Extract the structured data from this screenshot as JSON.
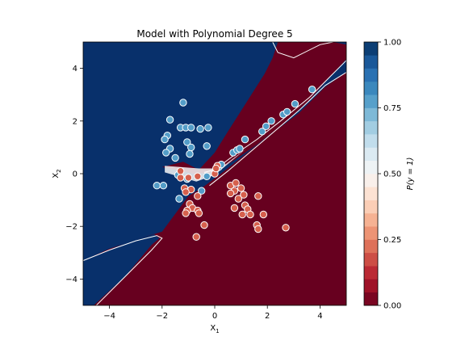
{
  "chart_data": {
    "type": "scatter",
    "title": "Model with Polynomial Degree 5",
    "xlabel_main": "X",
    "xlabel_sub": "1",
    "ylabel_main": "X",
    "ylabel_sub": "2",
    "xlim": [
      -5,
      5
    ],
    "ylim": [
      -5,
      5
    ],
    "xticks": [
      -4,
      -2,
      0,
      2,
      4
    ],
    "xtick_labels": [
      "−4",
      "−2",
      "0",
      "2",
      "4"
    ],
    "yticks": [
      -4,
      -2,
      0,
      2,
      4
    ],
    "ytick_labels": [
      "−4",
      "−2",
      "0",
      "2",
      "4"
    ],
    "background": "decision-surface",
    "colormap": "RdBu",
    "colors": {
      "class1": "#08306b",
      "class0": "#67001f",
      "mid": "#f7f7f7",
      "point_edge": "#ffffff"
    },
    "colorbar": {
      "label": "P(y = 1)",
      "ticks": [
        0.0,
        0.25,
        0.5,
        0.75,
        1.0
      ],
      "tick_labels": [
        "0.00",
        "0.25",
        "0.50",
        "0.75",
        "1.00"
      ],
      "levels": 20
    },
    "series": [
      {
        "class": 1,
        "points": [
          [
            -1.2,
            2.7
          ],
          [
            -1.7,
            2.05
          ],
          [
            -1.3,
            1.75
          ],
          [
            -1.1,
            1.75
          ],
          [
            -0.9,
            1.75
          ],
          [
            -0.55,
            1.7
          ],
          [
            -0.25,
            1.75
          ],
          [
            -1.8,
            1.45
          ],
          [
            -1.9,
            1.3
          ],
          [
            -1.05,
            1.2
          ],
          [
            -1.7,
            0.95
          ],
          [
            -0.9,
            1.0
          ],
          [
            -0.3,
            1.05
          ],
          [
            -1.85,
            0.8
          ],
          [
            -0.95,
            0.75
          ],
          [
            -1.5,
            0.6
          ],
          [
            -2.2,
            -0.45
          ],
          [
            -1.95,
            -0.45
          ],
          [
            -1.35,
            -0.95
          ],
          [
            -0.5,
            -0.65
          ],
          [
            -0.3,
            -0.1
          ],
          [
            0.15,
            0.25
          ],
          [
            0.25,
            0.35
          ],
          [
            0.7,
            0.8
          ],
          [
            0.85,
            0.9
          ],
          [
            0.95,
            0.95
          ],
          [
            1.15,
            1.3
          ],
          [
            1.8,
            1.6
          ],
          [
            1.95,
            1.8
          ],
          [
            2.15,
            2.0
          ],
          [
            2.6,
            2.25
          ],
          [
            2.75,
            2.35
          ],
          [
            3.05,
            2.65
          ],
          [
            3.7,
            3.2
          ],
          [
            -1.05,
            -0.2
          ],
          [
            -1.4,
            -0.05
          ]
        ]
      },
      {
        "class": 0,
        "points": [
          [
            -1.3,
            -0.15
          ],
          [
            -1.0,
            -0.15
          ],
          [
            -1.3,
            0.1
          ],
          [
            -0.65,
            -0.1
          ],
          [
            -1.15,
            -0.55
          ],
          [
            -0.9,
            -0.6
          ],
          [
            -0.65,
            -0.85
          ],
          [
            -1.1,
            -0.7
          ],
          [
            -0.95,
            -1.15
          ],
          [
            -0.85,
            -1.3
          ],
          [
            -1.05,
            -1.4
          ],
          [
            -0.65,
            -1.4
          ],
          [
            -0.6,
            -1.5
          ],
          [
            -1.1,
            -1.5
          ],
          [
            -0.4,
            -1.95
          ],
          [
            -0.7,
            -2.4
          ],
          [
            0.0,
            0.0
          ],
          [
            0.1,
            0.3
          ],
          [
            0.6,
            -0.45
          ],
          [
            0.8,
            -0.35
          ],
          [
            0.75,
            -0.65
          ],
          [
            1.0,
            -0.55
          ],
          [
            0.6,
            -0.75
          ],
          [
            1.1,
            -0.8
          ],
          [
            0.9,
            -0.95
          ],
          [
            1.15,
            -1.2
          ],
          [
            1.25,
            -1.35
          ],
          [
            1.35,
            -1.55
          ],
          [
            1.65,
            -0.85
          ],
          [
            1.85,
            -1.55
          ],
          [
            1.6,
            -1.95
          ],
          [
            1.65,
            -2.1
          ],
          [
            0.75,
            -1.3
          ],
          [
            1.05,
            -1.55
          ],
          [
            2.7,
            -2.05
          ],
          [
            0.05,
            0.2
          ]
        ]
      }
    ]
  }
}
